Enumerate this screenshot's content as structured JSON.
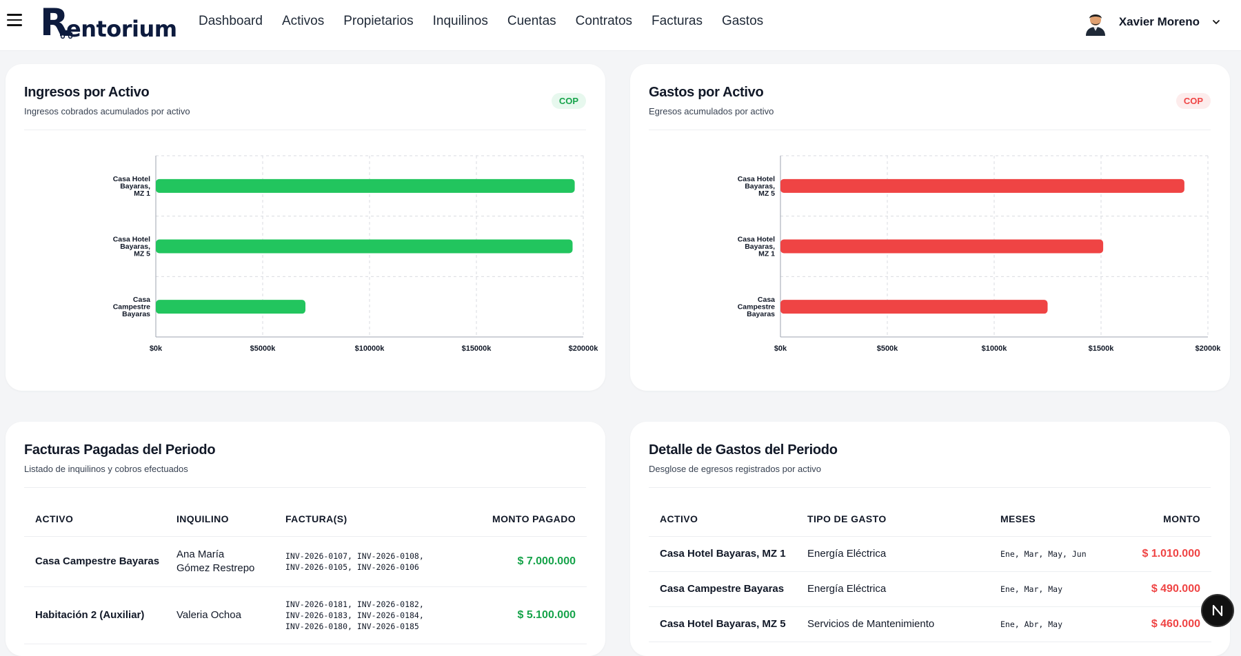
{
  "header": {
    "logo_initial": "R",
    "logo_rest": "entorium",
    "nav": [
      "Dashboard",
      "Activos",
      "Propietarios",
      "Inquilinos",
      "Cuentas",
      "Contratos",
      "Facturas",
      "Gastos"
    ],
    "user_name": "Xavier Moreno"
  },
  "income_card": {
    "title": "Ingresos por Activo",
    "subtitle": "Ingresos cobrados acumulados por activo",
    "badge": "COP"
  },
  "expense_card": {
    "title": "Gastos por Activo",
    "subtitle": "Egresos acumulados por activo",
    "badge": "COP"
  },
  "chart_data": [
    {
      "type": "bar",
      "orientation": "horizontal",
      "title": "Ingresos por Activo",
      "categories": [
        [
          "Casa Hotel",
          "Bayaras,",
          "MZ 1"
        ],
        [
          "Casa Hotel",
          "Bayaras,",
          "MZ 5"
        ],
        [
          "Casa",
          "Campestre",
          "Bayaras"
        ]
      ],
      "values": [
        19600,
        19500,
        7000
      ],
      "xlim": [
        0,
        20000
      ],
      "ticks": [
        0,
        5000,
        10000,
        15000,
        20000
      ],
      "tick_labels": [
        "$0k",
        "$5000k",
        "$10000k",
        "$15000k",
        "$20000k"
      ],
      "color": "#22c55e",
      "grid": true
    },
    {
      "type": "bar",
      "orientation": "horizontal",
      "title": "Gastos por Activo",
      "categories": [
        [
          "Casa Hotel",
          "Bayaras,",
          "MZ 5"
        ],
        [
          "Casa Hotel",
          "Bayaras,",
          "MZ 1"
        ],
        [
          "Casa",
          "Campestre",
          "Bayaras"
        ]
      ],
      "values": [
        1890,
        1510,
        1250
      ],
      "xlim": [
        0,
        2000
      ],
      "ticks": [
        0,
        500,
        1000,
        1500,
        2000
      ],
      "tick_labels": [
        "$0k",
        "$500k",
        "$1000k",
        "$1500k",
        "$2000k"
      ],
      "color": "#ef4444",
      "grid": true
    }
  ],
  "invoices_card": {
    "title": "Facturas Pagadas del Periodo",
    "subtitle": "Listado de inquilinos y cobros efectuados",
    "columns": [
      "ACTIVO",
      "INQUILINO",
      "FACTURA(S)",
      "MONTO PAGADO"
    ],
    "rows": [
      {
        "activo": "Casa Campestre Bayaras",
        "inquilino": [
          "Ana María",
          "Gómez Restrepo"
        ],
        "facturas": [
          "INV-2026-0107, INV-2026-0108,",
          "INV-2026-0105, INV-2026-0106"
        ],
        "monto": "$ 7.000.000"
      },
      {
        "activo": "Habitación 2 (Auxiliar)",
        "inquilino": [
          "Valeria Ochoa"
        ],
        "facturas": [
          "INV-2026-0181, INV-2026-0182,",
          "INV-2026-0183, INV-2026-0184,",
          "INV-2026-0180, INV-2026-0185"
        ],
        "monto": "$ 5.100.000"
      }
    ]
  },
  "expenses_card": {
    "title": "Detalle de Gastos del Periodo",
    "subtitle": "Desglose de egresos registrados por activo",
    "columns": [
      "ACTIVO",
      "TIPO DE GASTO",
      "MESES",
      "MONTO"
    ],
    "rows": [
      {
        "activo": "Casa Hotel Bayaras, MZ 1",
        "tipo": "Energía Eléctrica",
        "meses": "Ene, Mar, May, Jun",
        "monto": "$ 1.010.000"
      },
      {
        "activo": "Casa Campestre Bayaras",
        "tipo": "Energía Eléctrica",
        "meses": "Ene, Mar, May",
        "monto": "$ 490.000"
      },
      {
        "activo": "Casa Hotel Bayaras, MZ 5",
        "tipo": "Servicios de Mantenimiento",
        "meses": "Ene, Abr, May",
        "monto": "$ 460.000"
      }
    ]
  },
  "fab": {
    "label": "N"
  }
}
